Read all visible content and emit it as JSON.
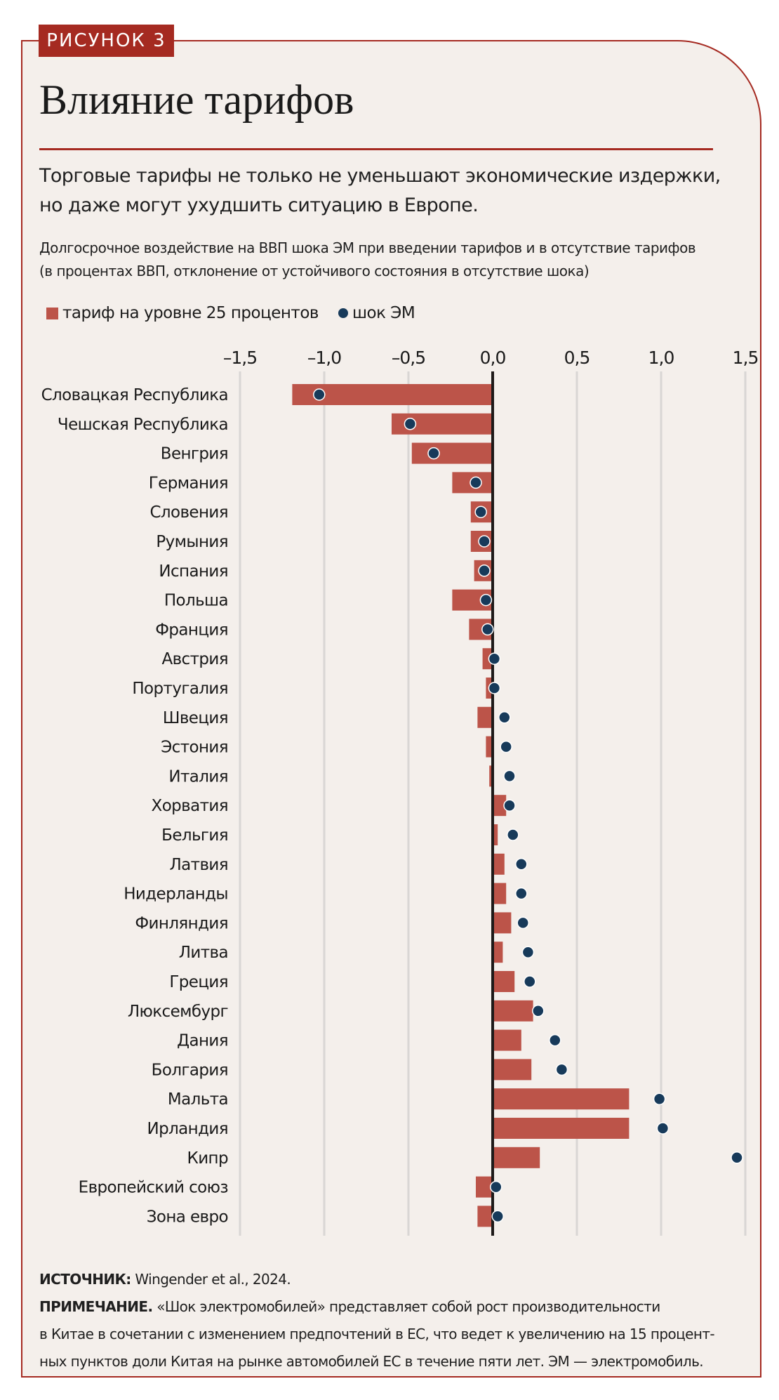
{
  "figure": {
    "badge": "РИСУНОК 3",
    "title": "Влияние тарифов",
    "subtitle_lines": [
      "Торговые тарифы не только не уменьшают экономические издержки,",
      "но даже могут ухудшить ситуацию в Европе."
    ],
    "description_lines": [
      "Долгосрочное воздействие на ВВП шока ЭМ при введении тарифов и в отсутствие тарифов",
      "(в процентах ВВП, отклонение от устойчивого состояния в отсутствие шока)"
    ]
  },
  "legend": {
    "tariff_label": "тариф на уровне 25 процентов",
    "shock_label": "шок ЭМ"
  },
  "notes": {
    "source_label": "ИСТОЧНИК:",
    "source_text": "Wingender et al., 2024.",
    "note_label": "ПРИМЕЧАНИЕ.",
    "note_line1": "«Шок электромобилей» представляет собой рост производительности",
    "note_line2": "в Китае в сочетании с изменением предпочтений в ЕС, что ведет к увеличению на 15 процент-",
    "note_line3": "ных пунктов доли Китая на рынке автомобилей ЕС в течение пяти лет. ЭМ — электромобиль."
  },
  "colors": {
    "accent": "#a52a21",
    "bar": "#bc5449",
    "dot": "#173a5a",
    "background": "#f4efeb",
    "grid": "#d9d6d4",
    "zero_line": "#1e1a19"
  },
  "chart_data": {
    "type": "bar",
    "orientation": "horizontal",
    "title": "Влияние тарифов",
    "xlabel": "",
    "ylabel": "",
    "xlim": [
      -1.5,
      1.5
    ],
    "xticks": [
      -1.5,
      -1.0,
      -0.5,
      0.0,
      0.5,
      1.0,
      1.5
    ],
    "xtick_labels": [
      "–1,5",
      "–1,0",
      "–0,5",
      "0,0",
      "0,5",
      "1,0",
      "1,5"
    ],
    "grid": true,
    "legend_position": "top-left",
    "categories": [
      "Словацкая Республика",
      "Чешская Республика",
      "Венгрия",
      "Германия",
      "Словения",
      "Румыния",
      "Испания",
      "Польша",
      "Франция",
      "Австрия",
      "Португалия",
      "Швеция",
      "Эстония",
      "Италия",
      "Хорватия",
      "Бельгия",
      "Латвия",
      "Нидерланды",
      "Финляндия",
      "Литва",
      "Греция",
      "Люксембург",
      "Дания",
      "Болгария",
      "Мальта",
      "Ирландия",
      "Кипр",
      "Европейский союз",
      "Зона евро"
    ],
    "series": [
      {
        "name": "тариф на уровне 25 процентов",
        "kind": "bar",
        "values": [
          -1.19,
          -0.6,
          -0.48,
          -0.24,
          -0.13,
          -0.13,
          -0.11,
          -0.24,
          -0.14,
          -0.06,
          -0.04,
          -0.09,
          -0.04,
          -0.02,
          0.08,
          0.03,
          0.07,
          0.08,
          0.11,
          0.06,
          0.13,
          0.24,
          0.17,
          0.23,
          0.81,
          0.81,
          0.28,
          -0.1,
          -0.09
        ]
      },
      {
        "name": "шок ЭМ",
        "kind": "dot",
        "values": [
          -1.03,
          -0.49,
          -0.35,
          -0.1,
          -0.07,
          -0.05,
          -0.05,
          -0.04,
          -0.03,
          0.01,
          0.01,
          0.07,
          0.08,
          0.1,
          0.1,
          0.12,
          0.17,
          0.17,
          0.18,
          0.21,
          0.22,
          0.27,
          0.37,
          0.41,
          0.99,
          1.01,
          1.45,
          0.02,
          0.03
        ]
      }
    ]
  }
}
